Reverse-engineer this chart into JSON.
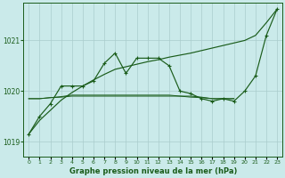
{
  "background_color": "#caeaea",
  "grid_color": "#aacccc",
  "line_color": "#1a5c1a",
  "title": "Graphe pression niveau de la mer (hPa)",
  "ylim": [
    1018.7,
    1021.75
  ],
  "yticks": [
    1019,
    1020,
    1021
  ],
  "hours": [
    0,
    1,
    2,
    3,
    4,
    5,
    6,
    7,
    8,
    9,
    10,
    11,
    12,
    13,
    14,
    15,
    16,
    17,
    18,
    19,
    20,
    21,
    22,
    23
  ],
  "series_trend": [
    1019.15,
    1019.42,
    1019.62,
    1019.82,
    1019.97,
    1020.1,
    1020.22,
    1020.33,
    1020.43,
    1020.48,
    1020.53,
    1020.58,
    1020.62,
    1020.67,
    1020.71,
    1020.75,
    1020.8,
    1020.85,
    1020.9,
    1020.95,
    1021.0,
    1021.1,
    1021.35,
    1021.62
  ],
  "series_wave": [
    1019.15,
    1019.5,
    1019.75,
    1020.1,
    1020.1,
    1020.1,
    1020.2,
    1020.55,
    1020.75,
    1020.35,
    1020.65,
    1020.65,
    1020.65,
    1020.5,
    1020.0,
    1019.95,
    1019.85,
    1019.8,
    1019.85,
    1019.8,
    1020.0,
    1020.3,
    1021.1,
    1021.62
  ],
  "series_flat1": [
    1019.85,
    1019.85,
    1019.87,
    1019.88,
    1019.9,
    1019.9,
    1019.9,
    1019.9,
    1019.9,
    1019.9,
    1019.9,
    1019.9,
    1019.9,
    1019.9,
    1019.9,
    1019.9,
    1019.88,
    1019.85,
    1019.85,
    1019.85
  ],
  "series_flat2": [
    1019.85,
    1019.85,
    1019.87,
    1019.89,
    1019.92,
    1019.92,
    1019.92,
    1019.92,
    1019.92,
    1019.92,
    1019.92,
    1019.92,
    1019.92,
    1019.92,
    1019.9,
    1019.88,
    1019.87,
    1019.85,
    1019.85,
    1019.85
  ],
  "flat_hours": [
    0,
    1,
    2,
    3,
    4,
    5,
    6,
    7,
    8,
    9,
    10,
    11,
    12,
    13,
    14,
    15,
    16,
    17,
    18,
    19
  ]
}
